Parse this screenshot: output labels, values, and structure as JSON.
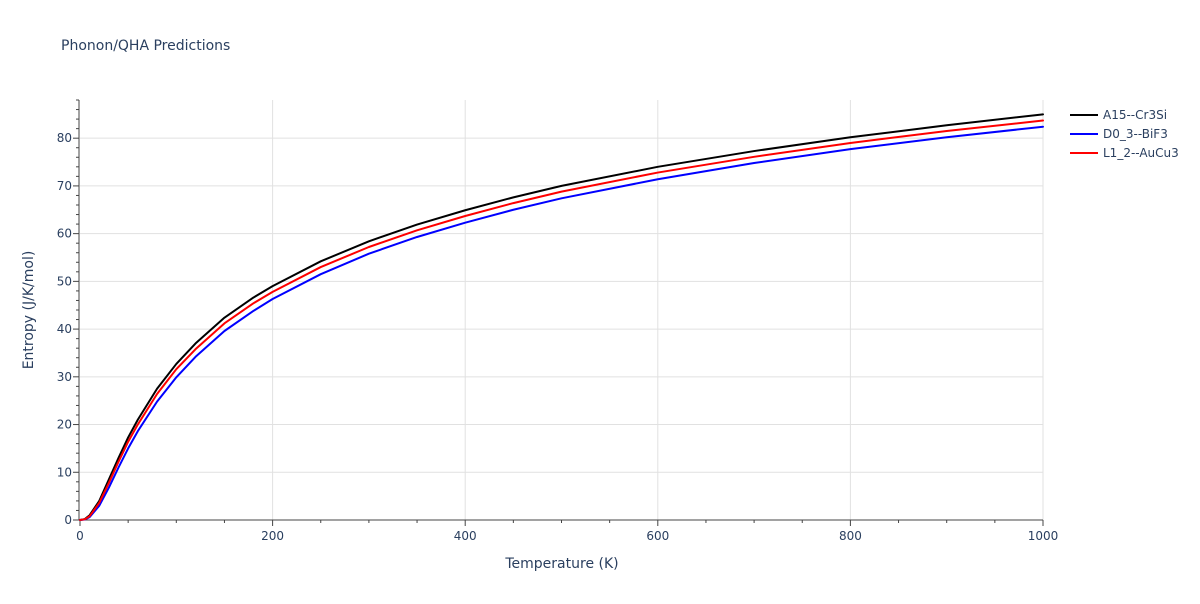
{
  "chart_data": {
    "type": "line",
    "title": "Phonon/QHA Predictions",
    "xlabel": "Temperature (K)",
    "ylabel": "Entropy (J/K/mol)",
    "xlim": [
      0,
      1000
    ],
    "ylim": [
      0,
      88
    ],
    "x_ticks": [
      0,
      200,
      400,
      600,
      800,
      1000
    ],
    "y_ticks": [
      0,
      10,
      20,
      30,
      40,
      50,
      60,
      70,
      80
    ],
    "grid": true,
    "legend_position": "top-right",
    "x": [
      0,
      5,
      10,
      20,
      30,
      40,
      50,
      60,
      80,
      100,
      120,
      150,
      180,
      200,
      250,
      300,
      350,
      400,
      450,
      500,
      600,
      700,
      800,
      900,
      1000
    ],
    "series": [
      {
        "name": "A15--Cr3Si",
        "color": "#000000",
        "values": [
          0,
          0.2,
          1.0,
          4.0,
          8.5,
          13.0,
          17.3,
          21.0,
          27.5,
          32.7,
          37.0,
          42.4,
          46.6,
          49.0,
          54.2,
          58.4,
          61.9,
          64.9,
          67.6,
          70.0,
          74.0,
          77.3,
          80.2,
          82.7,
          85.0
        ]
      },
      {
        "name": "D0_3--BiF3",
        "color": "#0000ff",
        "values": [
          0,
          0.1,
          0.6,
          3.0,
          6.8,
          11.0,
          15.0,
          18.6,
          24.8,
          29.9,
          34.2,
          39.6,
          43.8,
          46.3,
          51.5,
          55.8,
          59.3,
          62.3,
          65.0,
          67.4,
          71.4,
          74.8,
          77.7,
          80.2,
          82.4
        ]
      },
      {
        "name": "L1_2--AuCu3",
        "color": "#ff0000",
        "values": [
          0,
          0.15,
          0.8,
          3.6,
          7.8,
          12.2,
          16.4,
          20.0,
          26.4,
          31.6,
          35.8,
          41.2,
          45.4,
          47.8,
          53.0,
          57.2,
          60.7,
          63.7,
          66.4,
          68.8,
          72.8,
          76.1,
          79.0,
          81.5,
          83.7
        ]
      }
    ]
  }
}
